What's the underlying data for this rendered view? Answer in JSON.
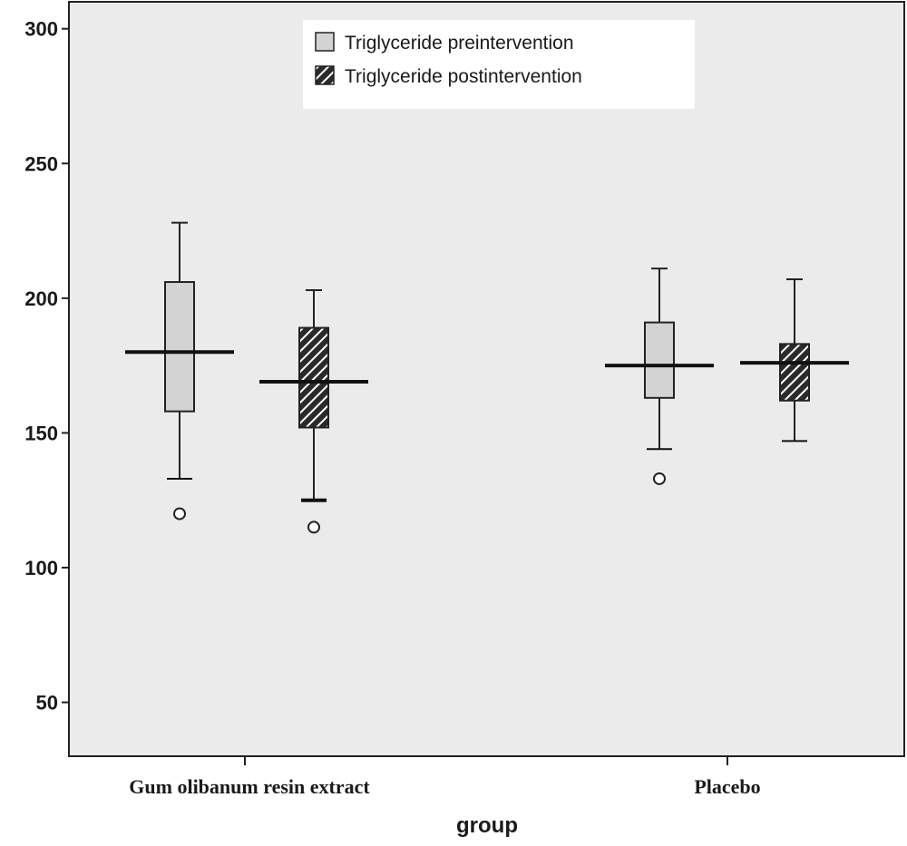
{
  "chart_data": {
    "type": "boxplot",
    "title": "",
    "xlabel": "group",
    "ylabel": "",
    "ylim": [
      30,
      310
    ],
    "yticks": [
      50,
      100,
      150,
      200,
      250,
      300
    ],
    "grid": false,
    "legend_position": "top-center",
    "categories": [
      "Gum olibanum resin extract",
      "Placebo"
    ],
    "series": [
      {
        "name": "Triglyceride preintervention",
        "fill": "#d3d3d3",
        "pattern": "solid",
        "boxes": [
          {
            "category": "Gum olibanum resin extract",
            "min": 133,
            "q1": 158,
            "median": 180,
            "q3": 206,
            "max": 228,
            "outliers": [
              120
            ]
          },
          {
            "category": "Placebo",
            "min": 144,
            "q1": 163,
            "median": 175,
            "q3": 191,
            "max": 211,
            "outliers": [
              133
            ]
          }
        ]
      },
      {
        "name": "Triglyceride postintervention",
        "fill": "#2a2a2a",
        "pattern": "diagonal-hatch",
        "boxes": [
          {
            "category": "Gum olibanum resin extract",
            "min": 125,
            "q1": 152,
            "median": 169,
            "q3": 189,
            "max": 203,
            "outliers": [
              115
            ]
          },
          {
            "category": "Placebo",
            "min": 147,
            "q1": 162,
            "median": 176,
            "q3": 183,
            "max": 207,
            "outliers": []
          }
        ]
      }
    ],
    "plot_background": "#ebebeb"
  }
}
